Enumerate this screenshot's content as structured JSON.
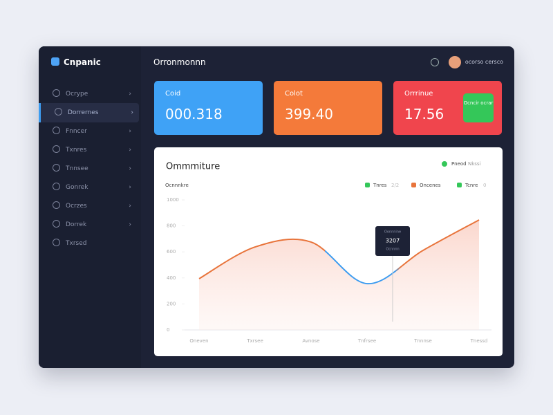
{
  "sidebar": {
    "brand": "Cnpanic",
    "items": [
      "Ocrype",
      "Dorrernes",
      "Fnncer",
      "Txnres",
      "Tnnsee",
      "Gonrek",
      "Ocrzes",
      "Dorrek",
      "Txrsed"
    ]
  },
  "header": {
    "title": "Orronmonnn",
    "user": "ocorso cersco"
  },
  "cards": [
    {
      "label": "Coid",
      "value": "000.318"
    },
    {
      "label": "Colot",
      "value": "399.40"
    },
    {
      "label": "Orrrinue",
      "value": "17.56",
      "button": "Ocncir ocrar"
    }
  ],
  "panel": {
    "title": "Ommmiture",
    "filter": "Pneod",
    "filter_value": "Nkssi",
    "legend": [
      {
        "label": "Tnres",
        "value": "2/2"
      },
      {
        "label": "Oncenes"
      },
      {
        "label": "Tcnre",
        "value": "0"
      }
    ],
    "tooltip": {
      "title": "Oonnnine",
      "value": "3207",
      "subtitle": "Ocnnnn"
    },
    "chart_data": {
      "type": "line",
      "title": "Ocnnnkre",
      "categories": [
        "Oneven",
        "Txrsee",
        "Avnose",
        "Tnfrsee",
        "Tnnnse",
        "Tnessd"
      ],
      "series": [
        {
          "name": "Tnres",
          "color": "#e8743b",
          "values": [
            394,
            638,
            676,
            356,
            612,
            846
          ]
        }
      ],
      "ylim": [
        0,
        1000
      ],
      "yticks": [
        0,
        200,
        400,
        600,
        800,
        1000
      ],
      "grid": false
    }
  }
}
